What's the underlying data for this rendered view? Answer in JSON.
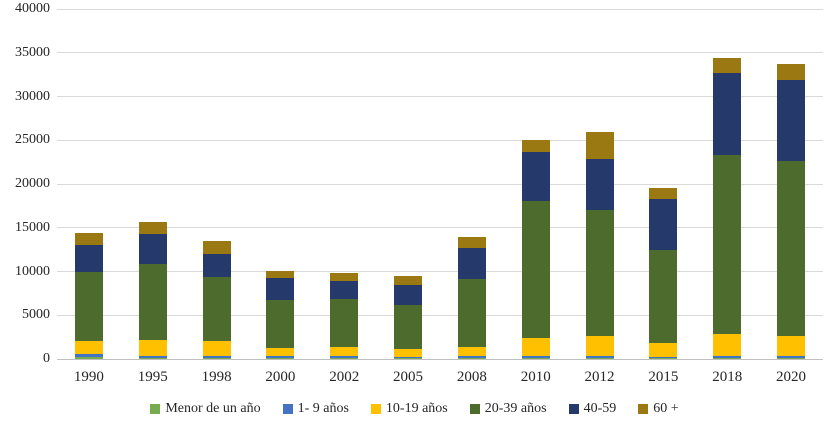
{
  "chart_data": {
    "type": "bar",
    "stacked": true,
    "title": "",
    "xlabel": "",
    "ylabel": "",
    "ylim": [
      0,
      40000
    ],
    "grid": true,
    "legend_position": "bottom",
    "yticks": [
      0,
      5000,
      10000,
      15000,
      20000,
      25000,
      30000,
      35000,
      40000
    ],
    "categories": [
      "1990",
      "1995",
      "1998",
      "2000",
      "2002",
      "2005",
      "2008",
      "2010",
      "2012",
      "2015",
      "2018",
      "2020"
    ],
    "series": [
      {
        "name": "Menor de un año",
        "color": "#76AC4E",
        "values": [
          200,
          100,
          100,
          100,
          100,
          100,
          100,
          100,
          100,
          100,
          100,
          100
        ]
      },
      {
        "name": "1- 9 años",
        "color": "#4472C4",
        "values": [
          400,
          250,
          200,
          300,
          200,
          150,
          200,
          200,
          250,
          160,
          250,
          200
        ]
      },
      {
        "name": "10-19 años",
        "color": "#FFC000",
        "values": [
          1500,
          1850,
          1750,
          850,
          1100,
          950,
          1100,
          2100,
          2300,
          1540,
          2500,
          2350
        ]
      },
      {
        "name": "20-39 años",
        "color": "#4D6B2C",
        "values": [
          7900,
          8650,
          7300,
          5550,
          5500,
          4950,
          7800,
          15700,
          14400,
          10650,
          20450,
          20000
        ]
      },
      {
        "name": "40-59",
        "color": "#25396B",
        "values": [
          3000,
          3450,
          2650,
          2450,
          2000,
          2300,
          3500,
          5600,
          5800,
          5850,
          9400,
          9250
        ]
      },
      {
        "name": "60 +",
        "color": "#9A7812",
        "values": [
          1400,
          1350,
          1500,
          800,
          900,
          1050,
          1200,
          1300,
          3050,
          1300,
          1650,
          1850
        ]
      }
    ],
    "totals": [
      14400,
      15650,
      13500,
      10050,
      9800,
      9500,
      13900,
      25000,
      25900,
      19600,
      34350,
      33750
    ]
  },
  "colors": {
    "gridline": "#d9d9d9",
    "baseline": "#bfbfbf",
    "background": "#ffffff",
    "text": "#262626"
  }
}
